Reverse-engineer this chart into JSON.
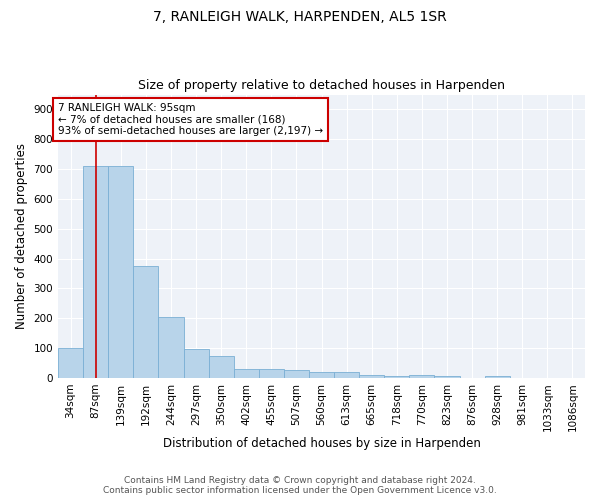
{
  "title": "7, RANLEIGH WALK, HARPENDEN, AL5 1SR",
  "subtitle": "Size of property relative to detached houses in Harpenden",
  "xlabel": "Distribution of detached houses by size in Harpenden",
  "ylabel": "Number of detached properties",
  "categories": [
    "34sqm",
    "87sqm",
    "139sqm",
    "192sqm",
    "244sqm",
    "297sqm",
    "350sqm",
    "402sqm",
    "455sqm",
    "507sqm",
    "560sqm",
    "613sqm",
    "665sqm",
    "718sqm",
    "770sqm",
    "823sqm",
    "876sqm",
    "928sqm",
    "981sqm",
    "1033sqm",
    "1086sqm"
  ],
  "values": [
    101,
    710,
    712,
    376,
    205,
    97,
    75,
    30,
    31,
    28,
    20,
    21,
    10,
    8,
    10,
    8,
    0,
    8,
    0,
    0,
    0
  ],
  "bar_color": "#b8d4ea",
  "bar_edge_color": "#7aafd4",
  "vline_x": 1,
  "vline_color": "#cc0000",
  "annotation_text": "7 RANLEIGH WALK: 95sqm\n← 7% of detached houses are smaller (168)\n93% of semi-detached houses are larger (2,197) →",
  "annotation_box_color": "#cc0000",
  "ylim": [
    0,
    950
  ],
  "yticks": [
    0,
    100,
    200,
    300,
    400,
    500,
    600,
    700,
    800,
    900
  ],
  "bg_color": "#ffffff",
  "plot_bg_color": "#eef2f8",
  "grid_color": "#ffffff",
  "footer_text": "Contains HM Land Registry data © Crown copyright and database right 2024.\nContains public sector information licensed under the Open Government Licence v3.0.",
  "title_fontsize": 10,
  "subtitle_fontsize": 9,
  "axis_label_fontsize": 8.5,
  "tick_fontsize": 7.5,
  "annotation_fontsize": 7.5,
  "footer_fontsize": 6.5
}
